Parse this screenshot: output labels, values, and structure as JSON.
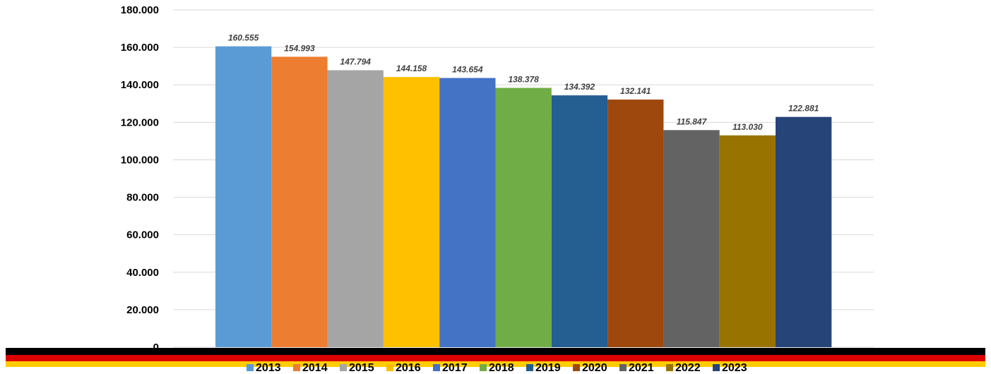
{
  "chart_data": {
    "type": "bar",
    "title": "",
    "xlabel": "",
    "ylabel": "",
    "ylim": [
      0,
      180000
    ],
    "ytick_labels": [
      "0",
      "20.000",
      "40.000",
      "60.000",
      "80.000",
      "100.000",
      "120.000",
      "140.000",
      "160.000",
      "180.000"
    ],
    "grid": true,
    "legend_position": "bottom",
    "series": [
      {
        "name": "2013",
        "value": 160555,
        "label": "160.555",
        "color": "#5b9bd5"
      },
      {
        "name": "2014",
        "value": 154993,
        "label": "154.993",
        "color": "#ed7d31"
      },
      {
        "name": "2015",
        "value": 147794,
        "label": "147.794",
        "color": "#a5a5a5"
      },
      {
        "name": "2016",
        "value": 144158,
        "label": "144.158",
        "color": "#ffc000"
      },
      {
        "name": "2017",
        "value": 143654,
        "label": "143.654",
        "color": "#4472c4"
      },
      {
        "name": "2018",
        "value": 138378,
        "label": "138.378",
        "color": "#70ad47"
      },
      {
        "name": "2019",
        "value": 134392,
        "label": "134.392",
        "color": "#255e91"
      },
      {
        "name": "2020",
        "value": 132141,
        "label": "132.141",
        "color": "#9e480e"
      },
      {
        "name": "2021",
        "value": 115847,
        "label": "115.847",
        "color": "#636363"
      },
      {
        "name": "2022",
        "value": 113030,
        "label": "113.030",
        "color": "#997300"
      },
      {
        "name": "2023",
        "value": 122881,
        "label": "122.881",
        "color": "#264478"
      }
    ]
  },
  "flag_stripes": {
    "colors": [
      "#000000",
      "#dd0000",
      "#ffcc00"
    ]
  }
}
